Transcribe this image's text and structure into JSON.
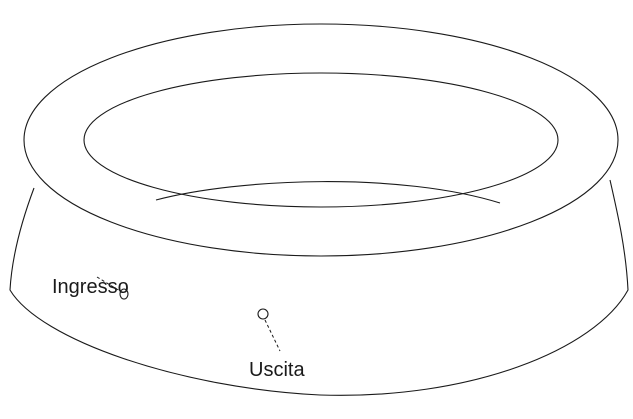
{
  "labels": {
    "inlet": "Ingresso",
    "outlet": "Uscita"
  },
  "colors": {
    "line": "#1a1a1a",
    "background": "#ffffff"
  }
}
